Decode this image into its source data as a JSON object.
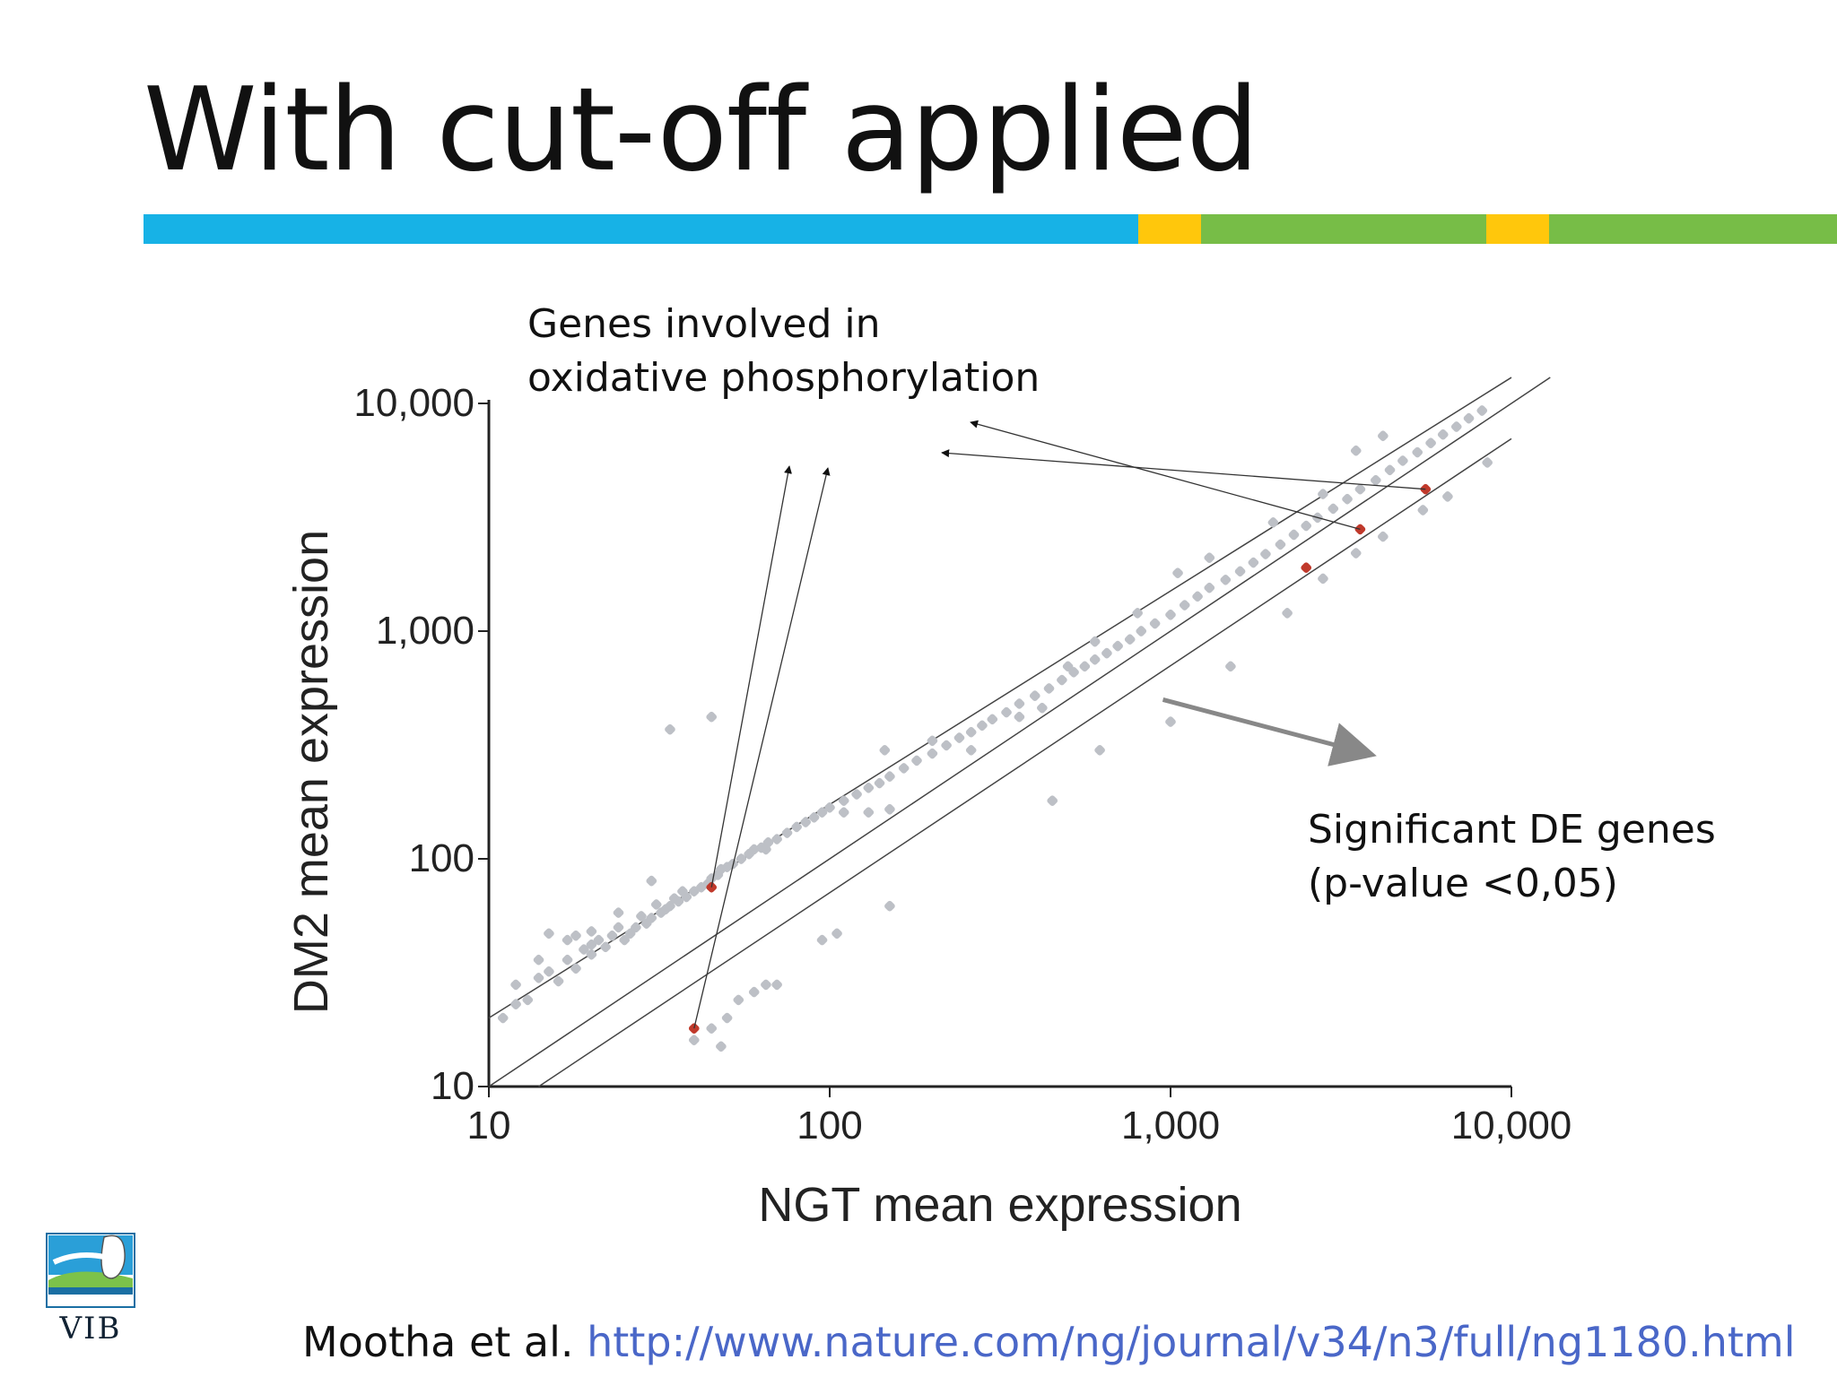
{
  "slide": {
    "title": "With cut-off applied",
    "title_bar_colors": [
      "#17b2e6",
      "#ffc70c",
      "#77bd47",
      "#ffc70c",
      "#77bd47"
    ]
  },
  "annotations": {
    "oxphos_line1": "Genes involved in",
    "oxphos_line2": "oxidative phosphorylation",
    "de_line1": "Significant DE genes",
    "de_line2": "(p-value <0,05)"
  },
  "citation": {
    "author": "Mootha et al.",
    "url": "http://www.nature.com/ng/journal/v34/n3/full/ng1180.html"
  },
  "logo": {
    "text": "VIB"
  },
  "chart_data": {
    "type": "scatter",
    "xlabel": "NGT mean expression",
    "ylabel": "DM2 mean expression",
    "xscale": "log",
    "yscale": "log",
    "xlim": [
      10,
      10000
    ],
    "ylim": [
      10,
      10000
    ],
    "xticks": [
      10,
      100,
      1000,
      10000
    ],
    "xtick_labels": [
      "10",
      "100",
      "1,000",
      "10,000"
    ],
    "yticks": [
      10,
      100,
      1000,
      10000
    ],
    "ytick_labels": [
      "10",
      "100",
      "1,000",
      "10,000"
    ],
    "grid": false,
    "colors": {
      "significant": "#bdc0c6",
      "oxphos": "#c0392b",
      "lines": "#444444",
      "arrow": "#888888"
    },
    "reference_lines": [
      {
        "name": "equality",
        "from": [
          10,
          10
        ],
        "to": [
          13000,
          13000
        ]
      },
      {
        "name": "upper cut-off",
        "from": [
          10,
          20
        ],
        "to": [
          10000,
          13000
        ]
      },
      {
        "name": "lower cut-off",
        "from": [
          14,
          10
        ],
        "to": [
          10000,
          7000
        ]
      }
    ],
    "series": [
      {
        "role": "significant",
        "points": [
          [
            11,
            20
          ],
          [
            12,
            23
          ],
          [
            12,
            28
          ],
          [
            13,
            24
          ],
          [
            14,
            30
          ],
          [
            14,
            36
          ],
          [
            15,
            47
          ],
          [
            15,
            32
          ],
          [
            16,
            29
          ],
          [
            17,
            36
          ],
          [
            17,
            44
          ],
          [
            18,
            33
          ],
          [
            19,
            40
          ],
          [
            20,
            38
          ],
          [
            20,
            48
          ],
          [
            21,
            44
          ],
          [
            22,
            41
          ],
          [
            23,
            46
          ],
          [
            24,
            50
          ],
          [
            24,
            58
          ],
          [
            25,
            44
          ],
          [
            26,
            47
          ],
          [
            27,
            50
          ],
          [
            28,
            56
          ],
          [
            29,
            52
          ],
          [
            30,
            55
          ],
          [
            31,
            63
          ],
          [
            32,
            58
          ],
          [
            33,
            60
          ],
          [
            34,
            62
          ],
          [
            35,
            67
          ],
          [
            36,
            65
          ],
          [
            37,
            72
          ],
          [
            38,
            68
          ],
          [
            40,
            72
          ],
          [
            42,
            75
          ],
          [
            44,
            78
          ],
          [
            45,
            82
          ],
          [
            47,
            85
          ],
          [
            48,
            90
          ],
          [
            50,
            92
          ],
          [
            52,
            95
          ],
          [
            55,
            100
          ],
          [
            58,
            105
          ],
          [
            60,
            110
          ],
          [
            63,
            112
          ],
          [
            66,
            118
          ],
          [
            70,
            122
          ],
          [
            75,
            130
          ],
          [
            80,
            138
          ],
          [
            85,
            145
          ],
          [
            90,
            152
          ],
          [
            95,
            160
          ],
          [
            100,
            168
          ],
          [
            110,
            180
          ],
          [
            120,
            192
          ],
          [
            130,
            205
          ],
          [
            140,
            215
          ],
          [
            150,
            230
          ],
          [
            165,
            250
          ],
          [
            180,
            270
          ],
          [
            200,
            290
          ],
          [
            220,
            315
          ],
          [
            240,
            340
          ],
          [
            260,
            360
          ],
          [
            280,
            385
          ],
          [
            300,
            410
          ],
          [
            330,
            440
          ],
          [
            360,
            480
          ],
          [
            400,
            520
          ],
          [
            440,
            560
          ],
          [
            480,
            610
          ],
          [
            520,
            660
          ],
          [
            560,
            700
          ],
          [
            600,
            750
          ],
          [
            650,
            800
          ],
          [
            700,
            860
          ],
          [
            760,
            920
          ],
          [
            820,
            1000
          ],
          [
            900,
            1080
          ],
          [
            1000,
            1180
          ],
          [
            1100,
            1300
          ],
          [
            1200,
            1420
          ],
          [
            1300,
            1550
          ],
          [
            1450,
            1680
          ],
          [
            1600,
            1830
          ],
          [
            1750,
            2000
          ],
          [
            1900,
            2180
          ],
          [
            2100,
            2400
          ],
          [
            2300,
            2650
          ],
          [
            2500,
            2900
          ],
          [
            2700,
            3150
          ],
          [
            3000,
            3450
          ],
          [
            3300,
            3800
          ],
          [
            3600,
            4200
          ],
          [
            4000,
            4600
          ],
          [
            4400,
            5100
          ],
          [
            4800,
            5600
          ],
          [
            5300,
            6100
          ],
          [
            5800,
            6700
          ],
          [
            6300,
            7300
          ],
          [
            6900,
            7900
          ],
          [
            7500,
            8600
          ],
          [
            8200,
            9300
          ],
          [
            18,
            46
          ],
          [
            20,
            42
          ],
          [
            30,
            80
          ],
          [
            34,
            370
          ],
          [
            45,
            420
          ],
          [
            65,
            110
          ],
          [
            110,
            160
          ],
          [
            130,
            160
          ],
          [
            145,
            300
          ],
          [
            150,
            165
          ],
          [
            200,
            330
          ],
          [
            260,
            300
          ],
          [
            360,
            420
          ],
          [
            420,
            460
          ],
          [
            500,
            700
          ],
          [
            600,
            900
          ],
          [
            800,
            1200
          ],
          [
            1050,
            1800
          ],
          [
            1300,
            2100
          ],
          [
            2000,
            3000
          ],
          [
            2800,
            4000
          ],
          [
            3500,
            6200
          ],
          [
            4200,
            7200
          ],
          [
            40,
            16
          ],
          [
            45,
            18
          ],
          [
            48,
            15
          ],
          [
            50,
            20
          ],
          [
            54,
            24
          ],
          [
            60,
            26
          ],
          [
            65,
            28
          ],
          [
            70,
            28
          ],
          [
            95,
            44
          ],
          [
            105,
            47
          ],
          [
            150,
            62
          ],
          [
            450,
            180
          ],
          [
            620,
            300
          ],
          [
            1000,
            400
          ],
          [
            1500,
            700
          ],
          [
            2200,
            1200
          ],
          [
            2800,
            1700
          ],
          [
            3500,
            2200
          ],
          [
            4200,
            2600
          ],
          [
            5500,
            3400
          ],
          [
            6500,
            3900
          ],
          [
            8500,
            5500
          ]
        ]
      },
      {
        "role": "oxphos",
        "points": [
          [
            45,
            75
          ],
          [
            40,
            18
          ],
          [
            3600,
            2800
          ],
          [
            5600,
            4200
          ],
          [
            2500,
            1900
          ]
        ]
      }
    ],
    "annotation_arrows": [
      {
        "label": "Genes involved in oxidative phosphorylation",
        "from": [
          45,
          75
        ],
        "to_label": true
      },
      {
        "label": "Genes involved in oxidative phosphorylation",
        "from": [
          40,
          18
        ],
        "to_label": true
      },
      {
        "label": "Genes involved in oxidative phosphorylation",
        "from": [
          3600,
          2800
        ],
        "to_label": true
      },
      {
        "label": "Genes involved in oxidative phosphorylation",
        "from": [
          5600,
          4200
        ],
        "to_label": true
      },
      {
        "label": "Significant DE genes (p-value <0,05)",
        "from": [
          950,
          500
        ],
        "to_label": true
      }
    ]
  }
}
